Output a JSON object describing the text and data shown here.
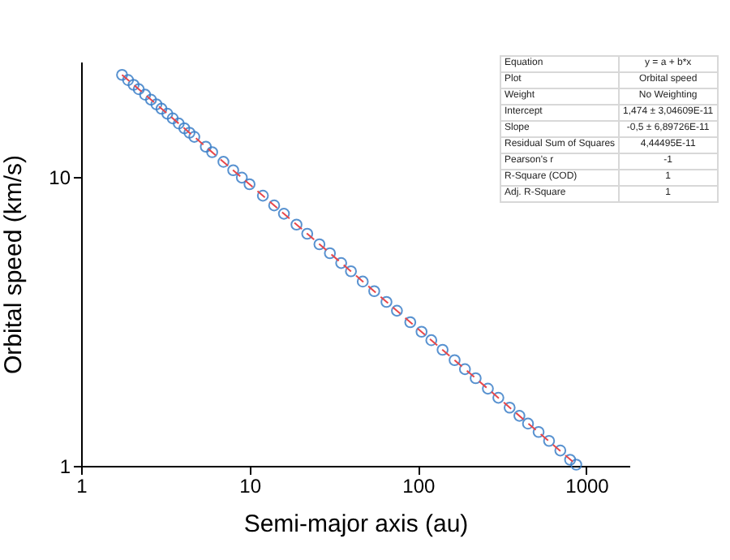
{
  "chart_data": {
    "type": "scatter",
    "xlabel": "Semi-major axis (au)",
    "ylabel": "Orbital speed (km/s)",
    "log": "xy",
    "xlim": [
      1,
      1800
    ],
    "ylim": [
      1,
      25
    ],
    "xticks": [
      1,
      10,
      100,
      1000
    ],
    "yticks": [
      1,
      10
    ],
    "series": [
      {
        "color": "#3c7fc8",
        "marker": "circle",
        "x": [
          1.75,
          1.9,
          2.05,
          2.2,
          2.4,
          2.6,
          2.8,
          3.0,
          3.25,
          3.5,
          3.8,
          4.1,
          4.4,
          4.7,
          5.5,
          6,
          7,
          8,
          9,
          10,
          12,
          14,
          16,
          19,
          22,
          26,
          30,
          35,
          40,
          47,
          55,
          65,
          75,
          90,
          105,
          120,
          140,
          165,
          190,
          220,
          260,
          300,
          350,
          400,
          450,
          520,
          600,
          700,
          800,
          870
        ],
        "values": [
          22.51,
          21.6,
          20.8,
          20.08,
          19.22,
          18.47,
          17.8,
          17.19,
          16.52,
          15.92,
          15.28,
          14.71,
          14.2,
          13.74,
          12.7,
          12.16,
          11.26,
          10.53,
          9.93,
          9.42,
          8.6,
          7.96,
          7.45,
          6.83,
          6.35,
          5.84,
          5.44,
          5.03,
          4.71,
          4.34,
          4.02,
          3.69,
          3.44,
          3.14,
          2.91,
          2.72,
          2.52,
          2.32,
          2.16,
          2.01,
          1.85,
          1.72,
          1.59,
          1.49,
          1.4,
          1.31,
          1.22,
          1.13,
          1.05,
          1.01
        ]
      },
      {
        "type": "line",
        "color": "#e8474a",
        "line_style": "dashed",
        "x": [
          1.75,
          870
        ],
        "values": [
          22.51,
          1.01
        ]
      }
    ],
    "annotations": [
      "Equation",
      "y = a + b*x",
      "Plot",
      "Orbital speed",
      "Weight",
      "No Weighting",
      "Intercept",
      "1,474 ± 3,04609E-11",
      "Slope",
      "-0,5 ± 6,89726E-11",
      "Residual Sum of Squares",
      "4,44495E-11",
      "Pearson's r",
      "-1",
      "R-Square (COD)",
      "1",
      "Adj. R-Square",
      "1"
    ]
  }
}
